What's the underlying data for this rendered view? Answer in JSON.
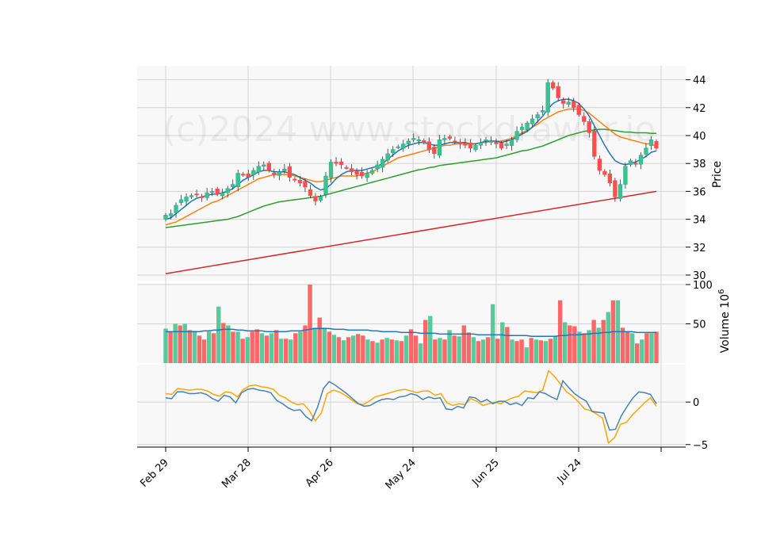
{
  "watermark": "(c)2024 www.stockdrawer.io",
  "chart_data": {
    "type": "candlestick",
    "colors": {
      "up": "#26a69a",
      "up_fill": "#3cc28b",
      "down": "#ff4d4d",
      "ma_short": "#1f77b4",
      "ma_mid": "#ff7f0e",
      "ma_long": "#2ca02c",
      "ma_200": "#d62728",
      "vol_ma": "#1f77b4",
      "osc_a": "#4682b4",
      "osc_b": "#ffa500",
      "grid": "#d3d3d3",
      "panel_bg": "#f8f8f8"
    },
    "x_ticks": [
      "Feb 29",
      "Mar 28",
      "Apr 26",
      "May 24",
      "Jun 25",
      "Jul 24"
    ],
    "price_panel": {
      "ylabel": "Price",
      "yticks": [
        30,
        32,
        34,
        36,
        38,
        40,
        42,
        44
      ],
      "ylim": [
        29.6,
        45
      ],
      "closes": [
        34.3,
        34.4,
        35.0,
        35.4,
        35.6,
        35.7,
        35.8,
        35.6,
        35.9,
        36.0,
        35.8,
        35.9,
        36.2,
        36.5,
        37.3,
        37.2,
        37.0,
        37.5,
        37.8,
        37.9,
        37.5,
        37.2,
        37.4,
        37.6,
        37.0,
        36.8,
        36.6,
        36.3,
        35.7,
        35.3,
        35.6,
        37.1,
        38.1,
        38.0,
        37.9,
        37.7,
        37.4,
        37.2,
        37.1,
        37.3,
        37.5,
        37.9,
        38.3,
        38.7,
        39.0,
        39.2,
        39.4,
        39.6,
        39.8,
        39.7,
        39.5,
        39.0,
        38.7,
        39.7,
        39.8,
        39.8,
        39.6,
        39.4,
        39.3,
        39.1,
        39.3,
        39.5,
        39.7,
        39.6,
        39.4,
        39.1,
        39.4,
        39.7,
        40.3,
        40.6,
        40.9,
        41.2,
        41.5,
        41.8,
        43.8,
        43.4,
        42.7,
        42.3,
        42.4,
        42.0,
        41.5,
        41.0,
        40.2,
        38.5,
        37.5,
        37.2,
        36.6,
        35.6,
        36.5,
        37.8,
        38.2,
        38.0,
        38.6,
        39.1,
        39.7,
        39.1
      ],
      "ma_short": [
        34.0,
        34.1,
        34.4,
        34.7,
        35.0,
        35.3,
        35.5,
        35.6,
        35.7,
        35.8,
        35.8,
        35.9,
        36.0,
        36.2,
        36.5,
        36.8,
        37.0,
        37.2,
        37.4,
        37.5,
        37.5,
        37.4,
        37.4,
        37.4,
        37.3,
        37.2,
        37.0,
        36.8,
        36.6,
        36.3,
        36.1,
        36.2,
        36.5,
        36.9,
        37.2,
        37.4,
        37.5,
        37.5,
        37.5,
        37.6,
        37.7,
        37.8,
        38.0,
        38.3,
        38.6,
        38.9,
        39.1,
        39.3,
        39.4,
        39.5,
        39.5,
        39.4,
        39.3,
        39.3,
        39.4,
        39.5,
        39.5,
        39.5,
        39.5,
        39.4,
        39.4,
        39.5,
        39.6,
        39.6,
        39.6,
        39.5,
        39.6,
        39.7,
        39.9,
        40.1,
        40.3,
        40.6,
        41.0,
        41.4,
        41.9,
        42.3,
        42.5,
        42.6,
        42.6,
        42.5,
        42.3,
        41.9,
        41.4,
        40.7,
        40.0,
        39.3,
        38.7,
        38.2,
        38.0,
        37.9,
        38.0,
        38.1,
        38.3,
        38.5,
        38.8,
        38.9
      ],
      "ma_mid": [
        33.6,
        33.7,
        33.8,
        34.0,
        34.2,
        34.4,
        34.6,
        34.8,
        35.0,
        35.2,
        35.3,
        35.5,
        35.7,
        35.9,
        36.1,
        36.3,
        36.5,
        36.7,
        36.9,
        37.0,
        37.1,
        37.2,
        37.2,
        37.2,
        37.2,
        37.1,
        37.0,
        36.9,
        36.8,
        36.7,
        36.7,
        36.8,
        36.9,
        37.0,
        37.1,
        37.1,
        37.1,
        37.1,
        37.2,
        37.3,
        37.4,
        37.6,
        37.8,
        38.0,
        38.2,
        38.4,
        38.5,
        38.6,
        38.7,
        38.8,
        38.9,
        39.0,
        39.1,
        39.2,
        39.3,
        39.3,
        39.4,
        39.4,
        39.4,
        39.4,
        39.4,
        39.5,
        39.5,
        39.6,
        39.6,
        39.6,
        39.7,
        39.8,
        40.0,
        40.2,
        40.4,
        40.6,
        40.8,
        41.1,
        41.3,
        41.5,
        41.7,
        41.8,
        41.9,
        41.9,
        41.9,
        41.8,
        41.6,
        41.3,
        41.0,
        40.7,
        40.4,
        40.1,
        39.9,
        39.8,
        39.7,
        39.6,
        39.5,
        39.4,
        39.4,
        39.2
      ],
      "ma_long": [
        33.4,
        33.45,
        33.5,
        33.55,
        33.6,
        33.65,
        33.7,
        33.75,
        33.8,
        33.85,
        33.9,
        33.95,
        34.0,
        34.1,
        34.2,
        34.35,
        34.5,
        34.65,
        34.8,
        34.95,
        35.05,
        35.15,
        35.25,
        35.3,
        35.35,
        35.4,
        35.45,
        35.5,
        35.55,
        35.6,
        35.65,
        35.75,
        35.85,
        35.95,
        36.05,
        36.15,
        36.25,
        36.35,
        36.45,
        36.55,
        36.65,
        36.75,
        36.85,
        36.95,
        37.05,
        37.15,
        37.25,
        37.35,
        37.45,
        37.55,
        37.6,
        37.7,
        37.75,
        37.85,
        37.9,
        37.95,
        38.0,
        38.05,
        38.1,
        38.15,
        38.2,
        38.25,
        38.3,
        38.35,
        38.4,
        38.5,
        38.6,
        38.7,
        38.8,
        38.9,
        38.95,
        39.05,
        39.15,
        39.25,
        39.4,
        39.55,
        39.7,
        39.85,
        40.0,
        40.1,
        40.2,
        40.3,
        40.35,
        40.4,
        40.45,
        40.45,
        40.4,
        40.35,
        40.3,
        40.25,
        40.25,
        40.2,
        40.2,
        40.2,
        40.15,
        40.15
      ],
      "ma_200": [
        30.1,
        36.0
      ]
    },
    "volume_panel": {
      "ylabel": "Volume  10^6",
      "yticks": [
        50,
        100
      ],
      "ylim": [
        0,
        102
      ],
      "values": [
        44,
        40,
        50,
        48,
        50,
        42,
        41,
        35,
        30,
        40,
        38,
        72,
        51,
        48,
        40,
        40,
        31,
        33,
        40,
        43,
        38,
        35,
        38,
        42,
        31,
        31,
        30,
        38,
        40,
        48,
        100,
        45,
        58,
        45,
        40,
        36,
        33,
        29,
        33,
        35,
        37,
        35,
        30,
        28,
        26,
        30,
        32,
        30,
        29,
        28,
        35,
        43,
        35,
        25,
        55,
        60,
        30,
        32,
        30,
        42,
        35,
        34,
        48,
        39,
        33,
        28,
        30,
        33,
        75,
        31,
        52,
        46,
        30,
        28,
        30,
        20,
        32,
        30,
        29,
        28,
        31,
        34,
        80,
        52,
        48,
        47,
        40,
        38,
        42,
        55,
        45,
        55,
        65,
        80,
        80,
        45,
        40,
        38,
        25,
        30,
        38,
        38,
        40
      ],
      "ma": [
        40,
        40,
        40,
        40,
        40,
        40,
        40,
        40,
        41,
        41,
        42,
        42,
        43,
        43,
        43,
        42,
        42,
        41,
        41,
        41,
        41,
        40,
        40,
        40,
        40,
        40,
        41,
        41,
        41,
        42,
        43,
        44,
        44,
        44,
        44,
        43,
        43,
        43,
        42,
        42,
        42,
        42,
        42,
        41,
        41,
        40,
        40,
        40,
        40,
        39,
        39,
        39,
        39,
        38,
        38,
        38,
        38,
        37,
        37,
        37,
        37,
        37,
        37,
        37,
        37,
        36,
        36,
        36,
        36,
        36,
        36,
        35,
        35,
        35,
        35,
        35,
        34,
        34,
        34,
        34,
        34,
        34,
        35,
        35,
        36,
        36,
        36,
        37,
        37,
        38,
        38,
        39,
        39,
        40,
        40,
        40,
        40,
        40,
        39,
        39,
        39,
        39,
        39
      ]
    },
    "osc_panel": {
      "yticks": [
        -5,
        0
      ],
      "ylim": [
        -5.3,
        4.4
      ],
      "series_a": [
        0.5,
        0.4,
        1.2,
        1.2,
        1.0,
        1.0,
        1.1,
        0.9,
        0.4,
        0.1,
        0.8,
        0.6,
        -0.1,
        1.1,
        1.5,
        1.6,
        1.4,
        1.3,
        1.1,
        0.2,
        -0.2,
        -0.7,
        -1.0,
        -0.9,
        -1.7,
        -2.2,
        -0.6,
        1.6,
        2.4,
        2.0,
        1.5,
        1.0,
        0.4,
        -0.2,
        -0.5,
        -0.4,
        0.0,
        0.3,
        0.4,
        0.3,
        0.6,
        0.7,
        1.0,
        0.8,
        0.3,
        0.6,
        0.4,
        0.5,
        -0.8,
        -0.9,
        -0.5,
        -0.7,
        0.6,
        0.5,
        0.0,
        0.3,
        -0.2,
        0.1,
        0.1,
        -0.3,
        -0.1,
        -0.4,
        0.5,
        0.4,
        1.2,
        1.0,
        0.6,
        0.3,
        2.5,
        1.7,
        1.0,
        0.5,
        0.1,
        -1.1,
        -1.2,
        -1.3,
        -3.3,
        -3.2,
        -1.6,
        -0.5,
        0.5,
        1.2,
        1.1,
        0.9,
        -0.2
      ],
      "series_b": [
        1.0,
        0.9,
        1.6,
        1.5,
        1.4,
        1.5,
        1.5,
        1.3,
        0.9,
        0.7,
        1.2,
        1.1,
        0.6,
        1.5,
        1.9,
        2.0,
        1.8,
        1.7,
        1.5,
        0.8,
        0.5,
        0.0,
        -0.3,
        -0.2,
        -1.0,
        -2.2,
        -1.3,
        1.0,
        1.4,
        1.2,
        0.8,
        0.3,
        -0.2,
        -0.3,
        0.1,
        0.6,
        0.8,
        1.0,
        1.2,
        1.4,
        1.5,
        1.3,
        1.1,
        1.3,
        1.3,
        0.8,
        1.0,
        -0.1,
        -0.4,
        -0.2,
        -0.3,
        0.4,
        0.1,
        -0.4,
        -0.2,
        0.0,
        -0.2,
        0.2,
        0.5,
        0.7,
        1.3,
        1.2,
        1.1,
        1.4,
        3.7,
        3.0,
        2.1,
        1.2,
        0.7,
        0.0,
        -0.8,
        -1.0,
        -1.4,
        -1.9,
        -4.8,
        -4.2,
        -2.6,
        -2.4,
        -1.5,
        -0.8,
        -0.1,
        0.5,
        -0.5
      ]
    }
  }
}
